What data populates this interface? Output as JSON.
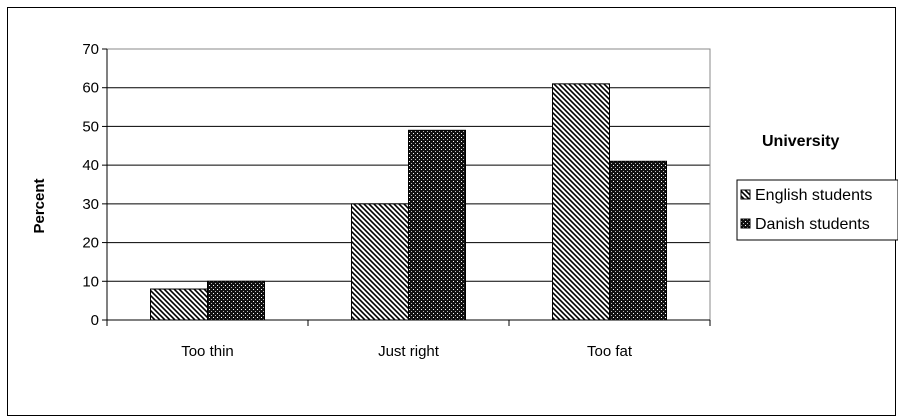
{
  "chart_data": {
    "type": "bar",
    "categories": [
      "Too thin",
      "Just right",
      "Too fat"
    ],
    "series": [
      {
        "name": "English students",
        "values": [
          8,
          30,
          61
        ],
        "pattern": "diagonal-hatch"
      },
      {
        "name": "Danish students",
        "values": [
          10,
          49,
          41
        ],
        "pattern": "dense-dark"
      }
    ],
    "title": "",
    "xlabel": "",
    "ylabel": "Percent",
    "ylim": [
      0,
      70
    ],
    "yticks": [
      0,
      10,
      20,
      30,
      40,
      50,
      60,
      70
    ],
    "grid": true,
    "legend": {
      "title": "University",
      "placement": "right"
    }
  }
}
